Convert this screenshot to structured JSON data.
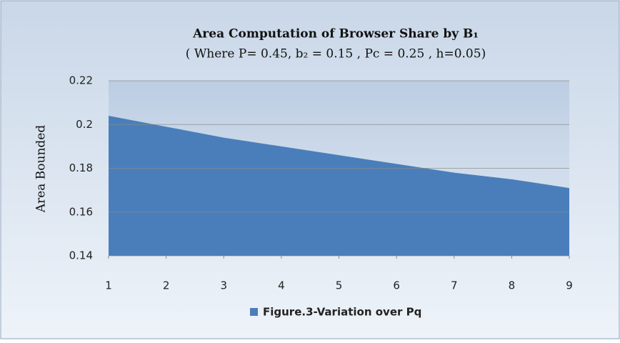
{
  "chart_data": {
    "type": "area",
    "title": "Area Computation of  Browser Share by B₁",
    "subtitle": "( Where P= 0.45, b₂ = 0.15 , Pc = 0.25 , h=0.05)",
    "y_label": "Area Bounded",
    "x": [
      1,
      2,
      3,
      4,
      5,
      6,
      7,
      8,
      9
    ],
    "xlim": [
      1,
      9
    ],
    "xticks": [
      1,
      2,
      3,
      4,
      5,
      6,
      7,
      8,
      9
    ],
    "series": [
      {
        "name": "Figure.3-Variation over Pq",
        "color": "#4a7ebb",
        "values": [
          0.204,
          0.199,
          0.194,
          0.19,
          0.186,
          0.182,
          0.178,
          0.175,
          0.171
        ]
      }
    ],
    "ylim": [
      0.14,
      0.22
    ],
    "yticks": [
      0.14,
      0.16,
      0.18,
      0.2,
      0.22
    ],
    "grid": true,
    "legend": "bottom"
  }
}
